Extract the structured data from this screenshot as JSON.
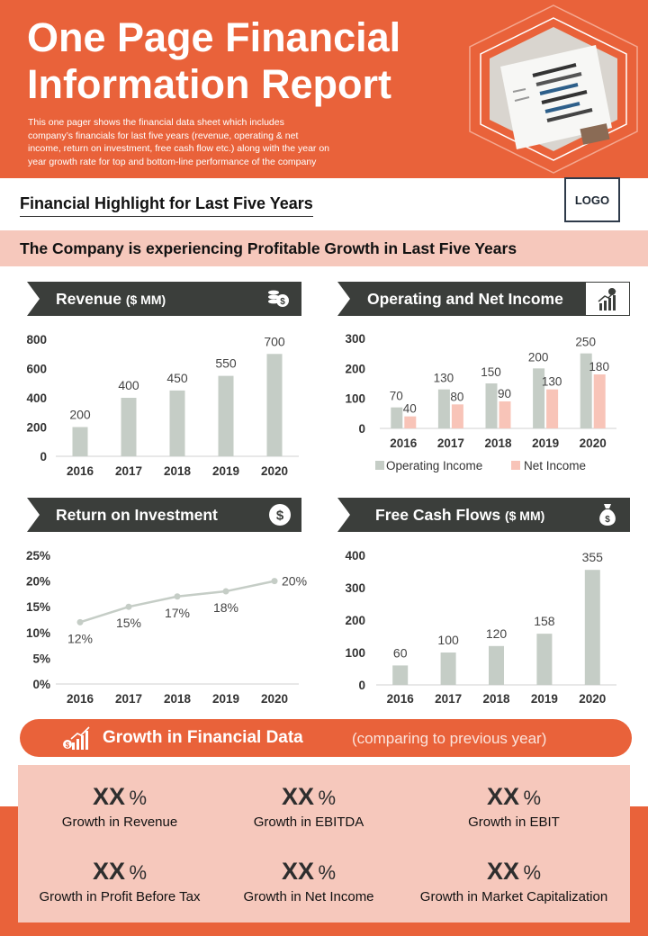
{
  "header": {
    "title_line1": "One Page Financial",
    "title_line2": "Information Report",
    "subtitle_lines": [
      "This one pager shows the financial data sheet which includes",
      "company’s financials for last five years (revenue, operating & net",
      "income, return on investment, free cash flow etc.) along with the year on",
      "year growth rate for top and bottom-line performance of the company"
    ]
  },
  "highlight_title": "Financial Highlight  for Last Five Years",
  "logo": "LOGO",
  "banner": "The Company is experiencing Profitable Growth in Last Five Years",
  "sections": {
    "revenue": {
      "label": "Revenue",
      "unit": "($ MM)"
    },
    "income": {
      "label": "Operating and Net Income"
    },
    "roi": {
      "label": "Return on Investment"
    },
    "fcf": {
      "label": "Free Cash Flows",
      "unit": "($ MM)"
    }
  },
  "colors": {
    "accent": "#e9623a",
    "pink": "#f6c8bc",
    "dark": "#3b3e3b",
    "bar_gray": "#c5cdc6",
    "bar_pink": "#f8c4b8"
  },
  "chart_data": [
    {
      "id": "revenue",
      "type": "bar",
      "categories": [
        "2016",
        "2017",
        "2018",
        "2019",
        "2020"
      ],
      "values": [
        200,
        400,
        450,
        550,
        700
      ],
      "ylim": [
        0,
        800
      ],
      "yticks": [
        0,
        200,
        400,
        600,
        800
      ]
    },
    {
      "id": "income",
      "type": "bar",
      "categories": [
        "2016",
        "2017",
        "2018",
        "2019",
        "2020"
      ],
      "series": [
        {
          "name": "Operating Income",
          "values": [
            70,
            130,
            150,
            200,
            250
          ]
        },
        {
          "name": "Net Income",
          "values": [
            40,
            80,
            90,
            130,
            180
          ]
        }
      ],
      "ylim": [
        0,
        300
      ],
      "yticks": [
        0,
        100,
        200,
        300
      ],
      "legend": "bottom"
    },
    {
      "id": "roi",
      "type": "line",
      "categories": [
        "2016",
        "2017",
        "2018",
        "2019",
        "2020"
      ],
      "values": [
        12,
        15,
        17,
        18,
        20
      ],
      "value_labels": [
        "12%",
        "15%",
        "17%",
        "18%",
        "20%"
      ],
      "ylim": [
        0,
        25
      ],
      "yticks": [
        "0%",
        "5%",
        "10%",
        "15%",
        "20%",
        "25%"
      ]
    },
    {
      "id": "fcf",
      "type": "bar",
      "categories": [
        "2016",
        "2017",
        "2018",
        "2019",
        "2020"
      ],
      "values": [
        60,
        100,
        120,
        158,
        355
      ],
      "ylim": [
        0,
        400
      ],
      "yticks": [
        0,
        100,
        200,
        300,
        400
      ]
    }
  ],
  "growth": {
    "title": "Growth  in  Financial  Data",
    "subtitle": "(comparing to previous year)",
    "items": [
      {
        "value": "XX",
        "pct": "%",
        "label": "Growth  in  Revenue"
      },
      {
        "value": "XX",
        "pct": "%",
        "label": "Growth  in  EBITDA"
      },
      {
        "value": "XX",
        "pct": "%",
        "label": "Growth  in  EBIT"
      },
      {
        "value": "XX",
        "pct": "%",
        "label": "Growth  in  Profit  Before  Tax"
      },
      {
        "value": "XX",
        "pct": "%",
        "label": "Growth  in  Net  Income"
      },
      {
        "value": "XX",
        "pct": "%",
        "label": "Growth  in  Market  Capitalization"
      }
    ]
  }
}
